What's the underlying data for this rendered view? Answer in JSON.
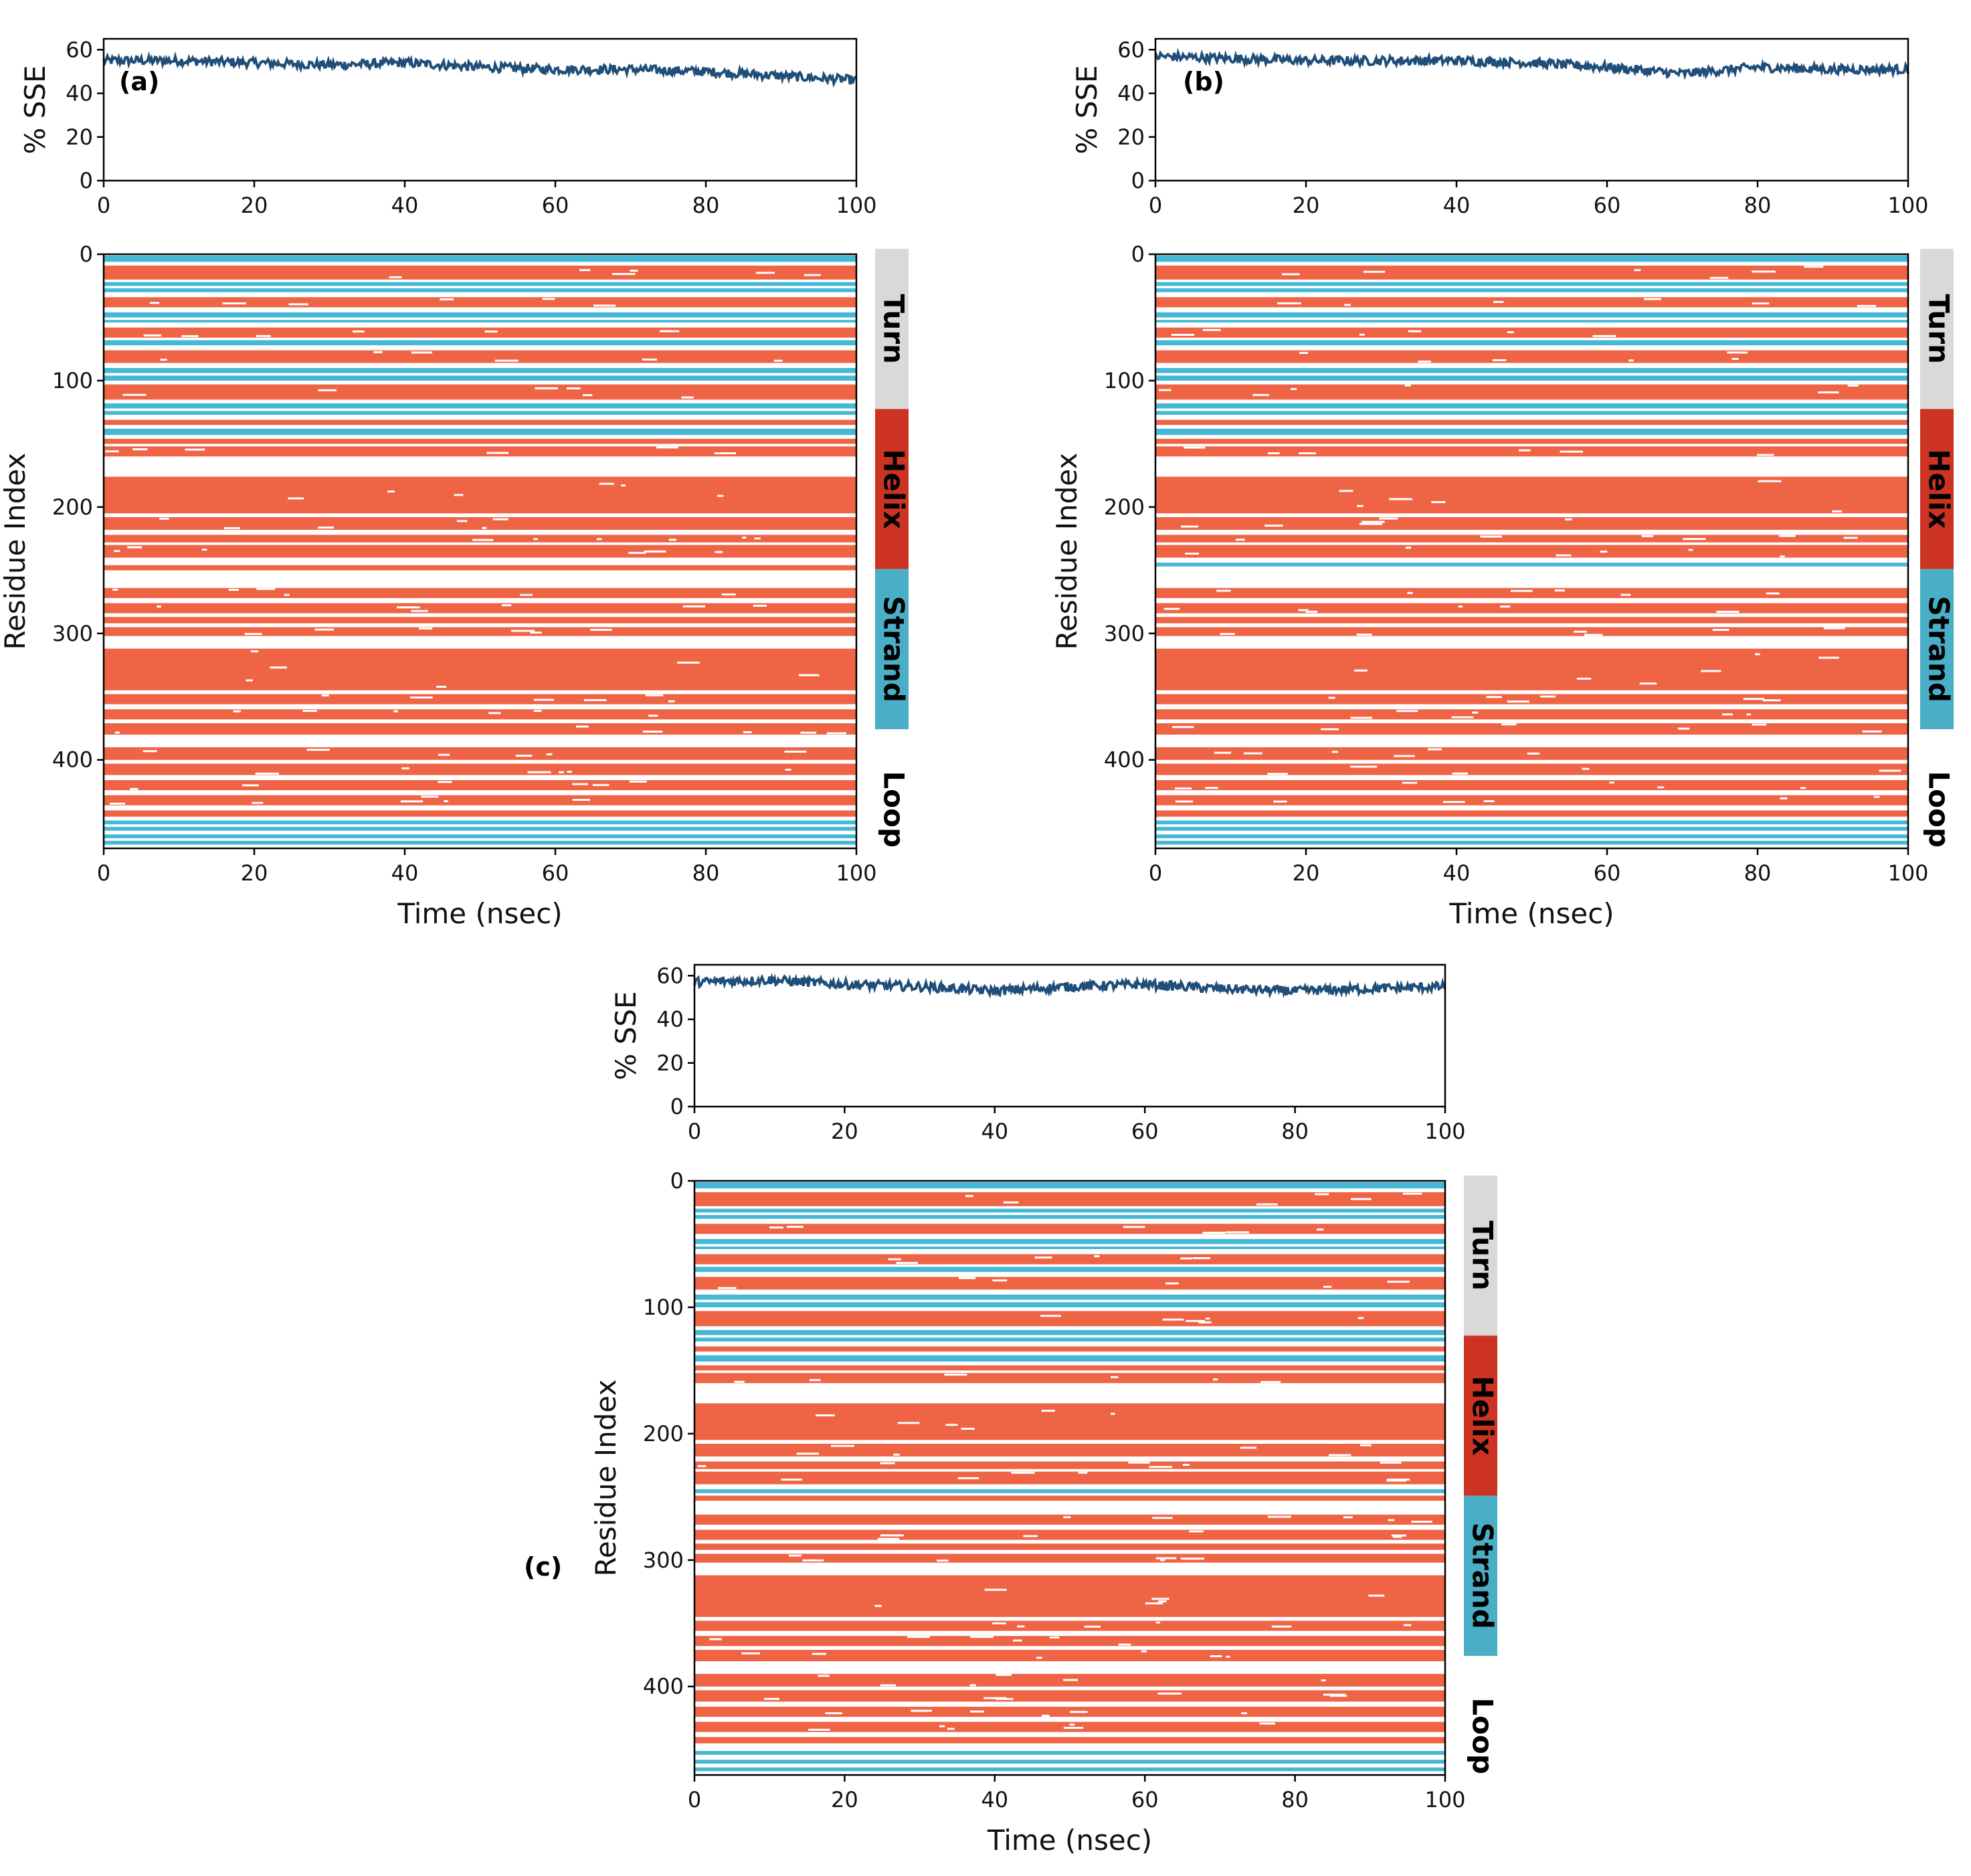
{
  "colors": {
    "sse_line": "#1f4e79",
    "helix": "#ef6445",
    "strand": "#45b8d6",
    "legend_turn": "#d9d9d9",
    "legend_helix": "#cc3322",
    "legend_strand": "#4aaec6",
    "axis": "#000000"
  },
  "legend_labels": [
    "Turn",
    "Helix",
    "Strand",
    "Loop"
  ],
  "chart_data": [
    {
      "panel": "(a)",
      "type": "line",
      "xlabel": "",
      "ylabel": "% SSE",
      "xlim": [
        0,
        100
      ],
      "ylim": [
        0,
        65
      ],
      "xticks": [
        "0",
        "20",
        "40",
        "60",
        "80",
        "100"
      ],
      "yticks": [
        "0",
        "20",
        "40",
        "60"
      ],
      "series": [
        {
          "x": [
            0,
            10,
            20,
            30,
            40,
            50,
            60,
            70,
            80,
            90,
            100
          ],
          "y": [
            55,
            55,
            54,
            53,
            54,
            52,
            51,
            51,
            50,
            48,
            46
          ]
        }
      ]
    },
    {
      "panel": "(a)",
      "type": "heatmap",
      "xlabel": "Time (nsec)",
      "ylabel": "Residue Index",
      "xlim": [
        0,
        100
      ],
      "ylim": [
        470,
        0
      ],
      "xticks": [
        "0",
        "20",
        "40",
        "60",
        "80",
        "100"
      ],
      "yticks": [
        "0",
        "100",
        "200",
        "300",
        "400"
      ],
      "categories": [
        "Helix",
        "Strand"
      ],
      "bands": [
        {
          "start": 1,
          "end": 6,
          "type": "strand"
        },
        {
          "start": 9,
          "end": 20,
          "type": "helix"
        },
        {
          "start": 22,
          "end": 25,
          "type": "strand"
        },
        {
          "start": 27,
          "end": 30,
          "type": "strand"
        },
        {
          "start": 34,
          "end": 42,
          "type": "helix"
        },
        {
          "start": 46,
          "end": 50,
          "type": "strand"
        },
        {
          "start": 52,
          "end": 54,
          "type": "strand"
        },
        {
          "start": 58,
          "end": 66,
          "type": "helix"
        },
        {
          "start": 68,
          "end": 72,
          "type": "strand"
        },
        {
          "start": 76,
          "end": 86,
          "type": "helix"
        },
        {
          "start": 90,
          "end": 94,
          "type": "strand"
        },
        {
          "start": 96,
          "end": 100,
          "type": "strand"
        },
        {
          "start": 103,
          "end": 115,
          "type": "helix"
        },
        {
          "start": 118,
          "end": 122,
          "type": "strand"
        },
        {
          "start": 124,
          "end": 127,
          "type": "strand"
        },
        {
          "start": 131,
          "end": 135,
          "type": "helix"
        },
        {
          "start": 138,
          "end": 143,
          "type": "strand"
        },
        {
          "start": 146,
          "end": 150,
          "type": "helix"
        },
        {
          "start": 152,
          "end": 160,
          "type": "helix"
        },
        {
          "start": 176,
          "end": 205,
          "type": "helix"
        },
        {
          "start": 208,
          "end": 218,
          "type": "helix"
        },
        {
          "start": 222,
          "end": 228,
          "type": "helix"
        },
        {
          "start": 230,
          "end": 240,
          "type": "helix"
        },
        {
          "start": 246,
          "end": 250,
          "type": "helix"
        },
        {
          "start": 264,
          "end": 272,
          "type": "helix"
        },
        {
          "start": 276,
          "end": 284,
          "type": "helix"
        },
        {
          "start": 287,
          "end": 292,
          "type": "helix"
        },
        {
          "start": 295,
          "end": 302,
          "type": "helix"
        },
        {
          "start": 312,
          "end": 345,
          "type": "helix"
        },
        {
          "start": 348,
          "end": 356,
          "type": "helix"
        },
        {
          "start": 360,
          "end": 368,
          "type": "helix"
        },
        {
          "start": 371,
          "end": 380,
          "type": "helix"
        },
        {
          "start": 390,
          "end": 400,
          "type": "helix"
        },
        {
          "start": 403,
          "end": 412,
          "type": "helix"
        },
        {
          "start": 416,
          "end": 424,
          "type": "helix"
        },
        {
          "start": 428,
          "end": 436,
          "type": "helix"
        },
        {
          "start": 440,
          "end": 445,
          "type": "helix"
        },
        {
          "start": 448,
          "end": 451,
          "type": "strand"
        },
        {
          "start": 453,
          "end": 456,
          "type": "strand"
        },
        {
          "start": 459,
          "end": 462,
          "type": "strand"
        },
        {
          "start": 464,
          "end": 467,
          "type": "strand"
        }
      ]
    },
    {
      "panel": "(b)",
      "type": "line",
      "xlabel": "",
      "ylabel": "% SSE",
      "xlim": [
        0,
        100
      ],
      "ylim": [
        0,
        65
      ],
      "xticks": [
        "0",
        "20",
        "40",
        "60",
        "80",
        "100"
      ],
      "yticks": [
        "0",
        "20",
        "40",
        "60"
      ],
      "series": [
        {
          "x": [
            0,
            10,
            20,
            30,
            40,
            50,
            60,
            70,
            80,
            90,
            100
          ],
          "y": [
            57,
            56,
            55,
            55,
            55,
            54,
            52,
            49,
            52,
            51,
            51
          ]
        }
      ]
    },
    {
      "panel": "(b)",
      "type": "heatmap",
      "xlabel": "Time (nsec)",
      "ylabel": "Residue Index",
      "xlim": [
        0,
        100
      ],
      "ylim": [
        470,
        0
      ],
      "xticks": [
        "0",
        "20",
        "40",
        "60",
        "80",
        "100"
      ],
      "yticks": [
        "0",
        "100",
        "200",
        "300",
        "400"
      ],
      "categories": [
        "Helix",
        "Strand"
      ],
      "bands": [
        {
          "start": 1,
          "end": 6,
          "type": "strand"
        },
        {
          "start": 9,
          "end": 20,
          "type": "helix"
        },
        {
          "start": 22,
          "end": 25,
          "type": "strand"
        },
        {
          "start": 27,
          "end": 30,
          "type": "strand"
        },
        {
          "start": 34,
          "end": 42,
          "type": "helix"
        },
        {
          "start": 46,
          "end": 50,
          "type": "strand"
        },
        {
          "start": 52,
          "end": 54,
          "type": "strand"
        },
        {
          "start": 58,
          "end": 66,
          "type": "helix"
        },
        {
          "start": 68,
          "end": 72,
          "type": "strand"
        },
        {
          "start": 76,
          "end": 86,
          "type": "helix"
        },
        {
          "start": 90,
          "end": 94,
          "type": "strand"
        },
        {
          "start": 96,
          "end": 100,
          "type": "strand"
        },
        {
          "start": 103,
          "end": 115,
          "type": "helix"
        },
        {
          "start": 118,
          "end": 122,
          "type": "strand"
        },
        {
          "start": 124,
          "end": 127,
          "type": "strand"
        },
        {
          "start": 131,
          "end": 135,
          "type": "helix"
        },
        {
          "start": 138,
          "end": 143,
          "type": "strand"
        },
        {
          "start": 146,
          "end": 150,
          "type": "helix"
        },
        {
          "start": 152,
          "end": 160,
          "type": "helix"
        },
        {
          "start": 176,
          "end": 205,
          "type": "helix"
        },
        {
          "start": 208,
          "end": 218,
          "type": "helix"
        },
        {
          "start": 222,
          "end": 228,
          "type": "helix"
        },
        {
          "start": 230,
          "end": 240,
          "type": "helix"
        },
        {
          "start": 244,
          "end": 247,
          "type": "strand"
        },
        {
          "start": 264,
          "end": 272,
          "type": "helix"
        },
        {
          "start": 276,
          "end": 284,
          "type": "helix"
        },
        {
          "start": 287,
          "end": 292,
          "type": "helix"
        },
        {
          "start": 295,
          "end": 302,
          "type": "helix"
        },
        {
          "start": 312,
          "end": 345,
          "type": "helix"
        },
        {
          "start": 348,
          "end": 356,
          "type": "helix"
        },
        {
          "start": 360,
          "end": 368,
          "type": "helix"
        },
        {
          "start": 371,
          "end": 380,
          "type": "helix"
        },
        {
          "start": 390,
          "end": 400,
          "type": "helix"
        },
        {
          "start": 403,
          "end": 412,
          "type": "helix"
        },
        {
          "start": 416,
          "end": 424,
          "type": "helix"
        },
        {
          "start": 428,
          "end": 436,
          "type": "helix"
        },
        {
          "start": 440,
          "end": 445,
          "type": "helix"
        },
        {
          "start": 448,
          "end": 451,
          "type": "strand"
        },
        {
          "start": 453,
          "end": 456,
          "type": "strand"
        },
        {
          "start": 459,
          "end": 462,
          "type": "strand"
        },
        {
          "start": 464,
          "end": 467,
          "type": "strand"
        }
      ]
    },
    {
      "panel": "(c)",
      "type": "line",
      "xlabel": "",
      "ylabel": "% SSE",
      "xlim": [
        0,
        100
      ],
      "ylim": [
        0,
        65
      ],
      "xticks": [
        "0",
        "20",
        "40",
        "60",
        "80",
        "100"
      ],
      "yticks": [
        "0",
        "20",
        "40",
        "60"
      ],
      "series": [
        {
          "x": [
            0,
            10,
            20,
            30,
            40,
            50,
            60,
            70,
            80,
            90,
            100
          ],
          "y": [
            57,
            58,
            56,
            55,
            53,
            55,
            56,
            54,
            53,
            54,
            55
          ]
        }
      ]
    },
    {
      "panel": "(c)",
      "type": "heatmap",
      "xlabel": "Time (nsec)",
      "ylabel": "Residue Index",
      "xlim": [
        0,
        100
      ],
      "ylim": [
        470,
        0
      ],
      "xticks": [
        "0",
        "20",
        "40",
        "60",
        "80",
        "100"
      ],
      "yticks": [
        "0",
        "100",
        "200",
        "300",
        "400"
      ],
      "categories": [
        "Helix",
        "Strand"
      ],
      "bands": [
        {
          "start": 1,
          "end": 6,
          "type": "strand"
        },
        {
          "start": 9,
          "end": 20,
          "type": "helix"
        },
        {
          "start": 22,
          "end": 25,
          "type": "strand"
        },
        {
          "start": 27,
          "end": 30,
          "type": "strand"
        },
        {
          "start": 34,
          "end": 42,
          "type": "helix"
        },
        {
          "start": 46,
          "end": 50,
          "type": "strand"
        },
        {
          "start": 52,
          "end": 54,
          "type": "strand"
        },
        {
          "start": 58,
          "end": 66,
          "type": "helix"
        },
        {
          "start": 68,
          "end": 72,
          "type": "strand"
        },
        {
          "start": 76,
          "end": 86,
          "type": "helix"
        },
        {
          "start": 90,
          "end": 94,
          "type": "strand"
        },
        {
          "start": 96,
          "end": 100,
          "type": "strand"
        },
        {
          "start": 103,
          "end": 115,
          "type": "helix"
        },
        {
          "start": 118,
          "end": 122,
          "type": "strand"
        },
        {
          "start": 124,
          "end": 127,
          "type": "strand"
        },
        {
          "start": 131,
          "end": 135,
          "type": "helix"
        },
        {
          "start": 138,
          "end": 143,
          "type": "strand"
        },
        {
          "start": 146,
          "end": 150,
          "type": "helix"
        },
        {
          "start": 152,
          "end": 160,
          "type": "helix"
        },
        {
          "start": 176,
          "end": 205,
          "type": "helix"
        },
        {
          "start": 208,
          "end": 218,
          "type": "helix"
        },
        {
          "start": 222,
          "end": 228,
          "type": "helix"
        },
        {
          "start": 230,
          "end": 240,
          "type": "helix"
        },
        {
          "start": 244,
          "end": 247,
          "type": "strand"
        },
        {
          "start": 249,
          "end": 253,
          "type": "helix"
        },
        {
          "start": 264,
          "end": 272,
          "type": "helix"
        },
        {
          "start": 276,
          "end": 284,
          "type": "helix"
        },
        {
          "start": 287,
          "end": 292,
          "type": "helix"
        },
        {
          "start": 295,
          "end": 302,
          "type": "helix"
        },
        {
          "start": 312,
          "end": 345,
          "type": "helix"
        },
        {
          "start": 348,
          "end": 356,
          "type": "helix"
        },
        {
          "start": 360,
          "end": 368,
          "type": "helix"
        },
        {
          "start": 371,
          "end": 380,
          "type": "helix"
        },
        {
          "start": 390,
          "end": 400,
          "type": "helix"
        },
        {
          "start": 403,
          "end": 412,
          "type": "helix"
        },
        {
          "start": 416,
          "end": 424,
          "type": "helix"
        },
        {
          "start": 428,
          "end": 436,
          "type": "helix"
        },
        {
          "start": 440,
          "end": 445,
          "type": "helix"
        },
        {
          "start": 451,
          "end": 454,
          "type": "strand"
        },
        {
          "start": 458,
          "end": 461,
          "type": "strand"
        },
        {
          "start": 464,
          "end": 467,
          "type": "strand"
        }
      ]
    }
  ]
}
